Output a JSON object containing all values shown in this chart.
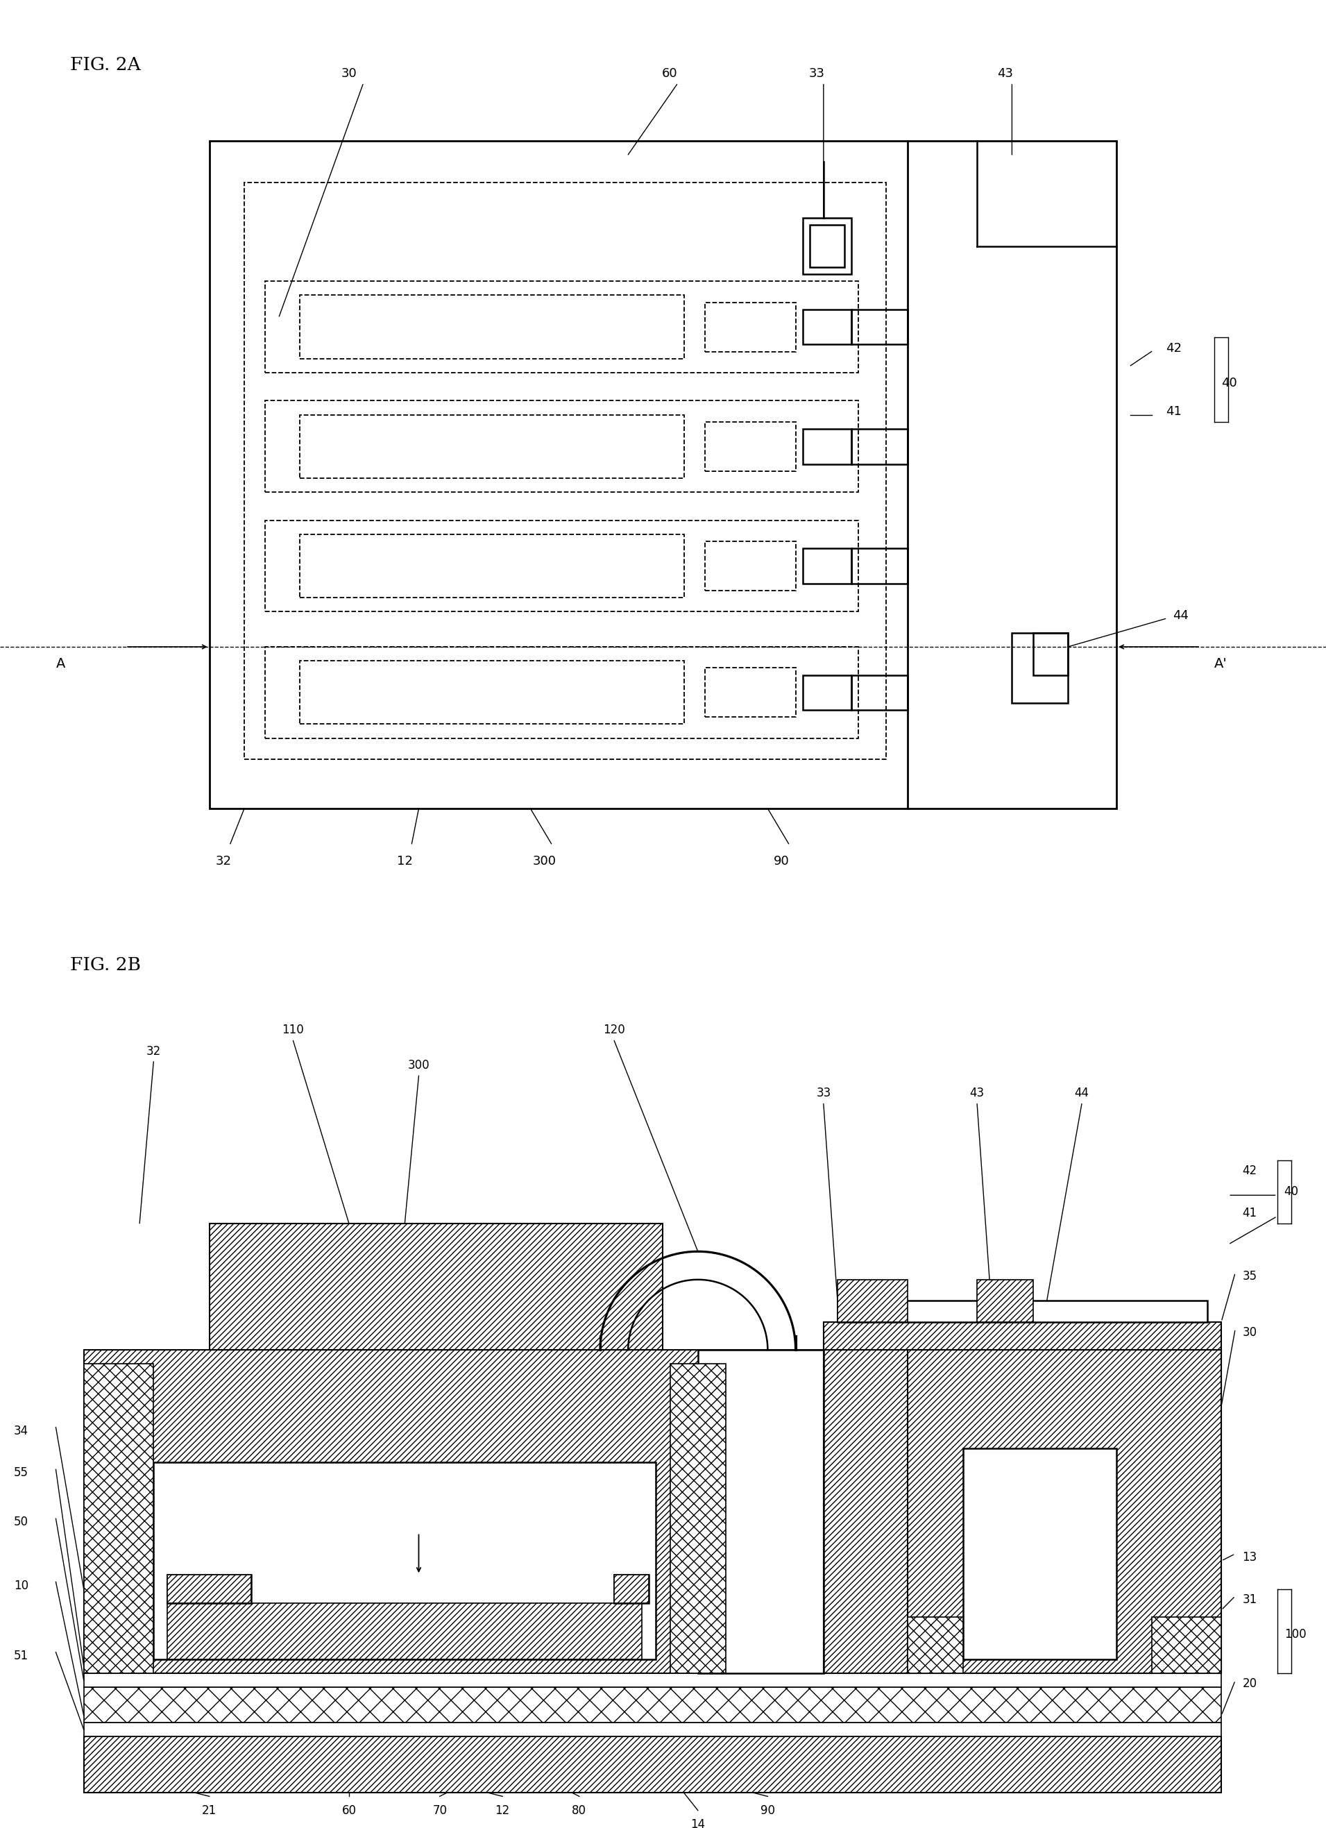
{
  "bg_color": "#ffffff",
  "lc": "#000000",
  "fig2a_label": "FIG. 2A",
  "fig2b_label": "FIG. 2B",
  "fig_width": 19.11,
  "fig_height": 26.34
}
